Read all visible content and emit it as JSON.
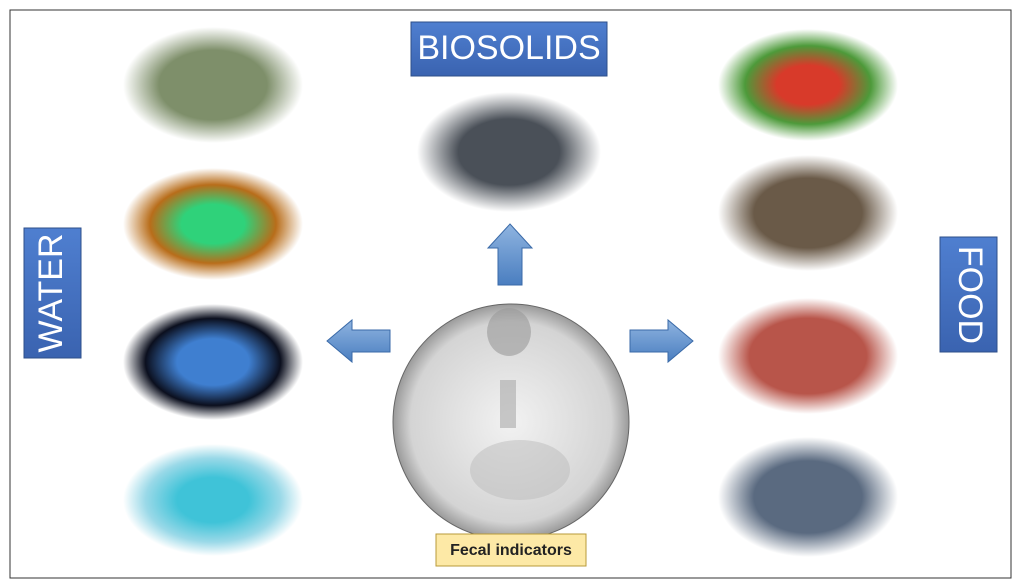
{
  "nodes": [
    {
      "label": "BIOSOLIDS"
    },
    {
      "label": "WATER"
    },
    {
      "label": "FOOD"
    },
    {
      "label": "Fecal indicators"
    }
  ]
}
